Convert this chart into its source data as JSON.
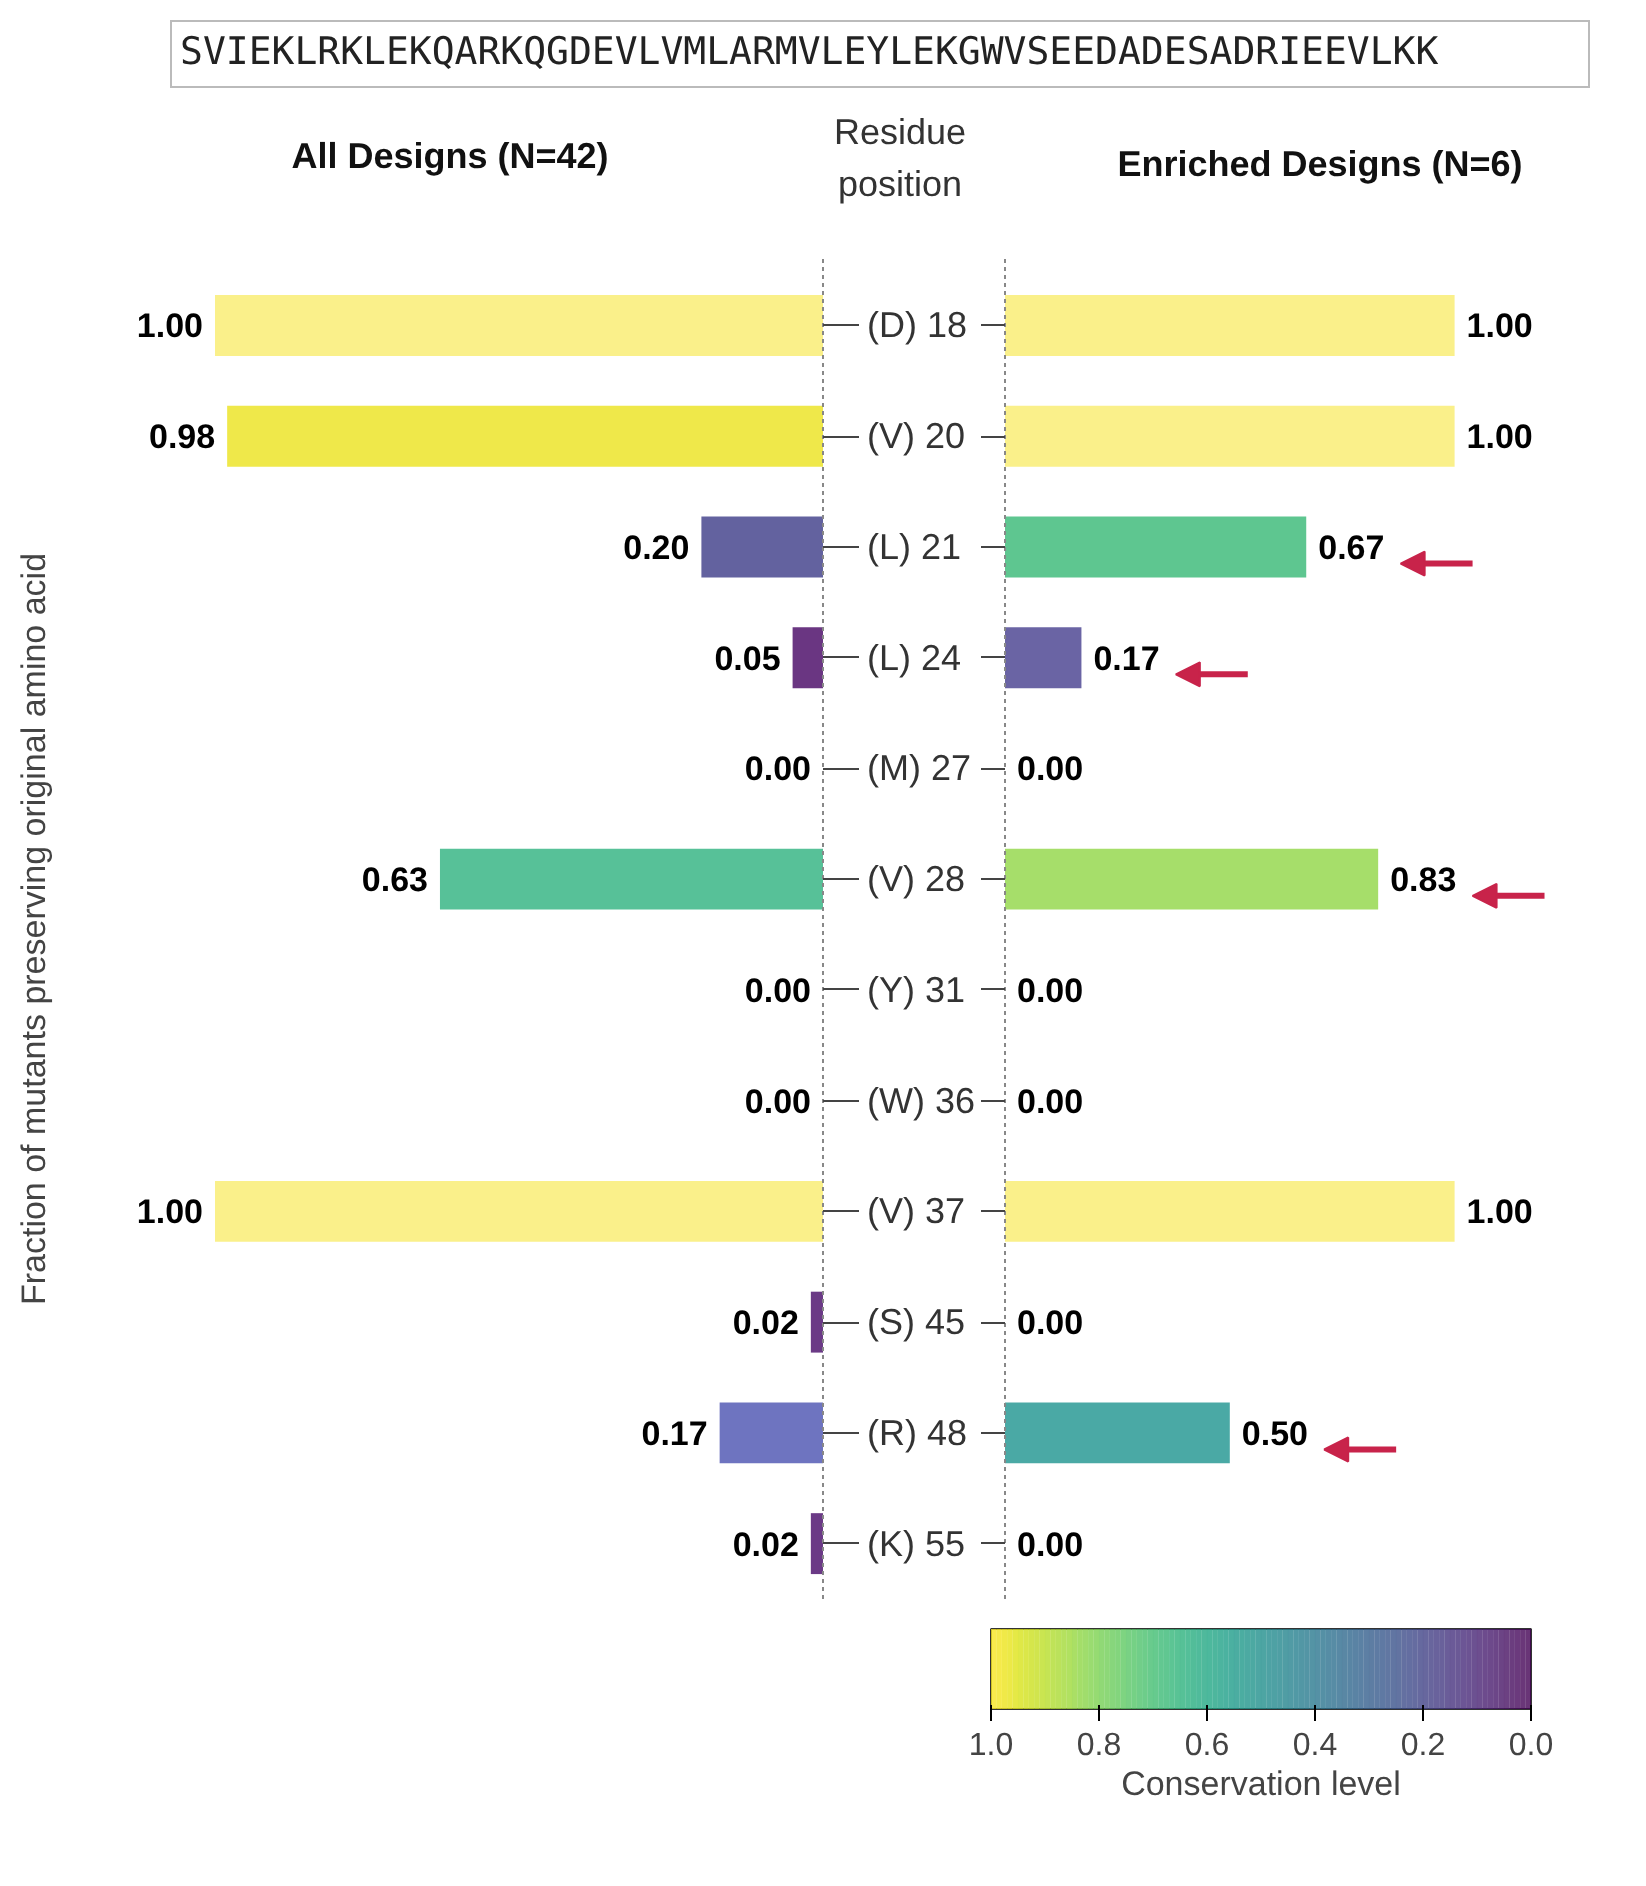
{
  "chart_data": [
    {
      "type": "bar",
      "orientation": "horizontal",
      "title": "All Designs (N=42)",
      "ylabel": "Fraction of mutants preserving original amino acid",
      "y2label": "Residue position",
      "annotations": [
        "SVIEKLRKLEKQARKQGDEVLVMLARMVLEYLEKGWVSEEDADESADRIEEVLKK"
      ],
      "grid": false,
      "tick_labels": "y",
      "categories": [
        "(D) 18",
        "(V) 20",
        "(L) 21",
        "(L) 24",
        "(M) 27",
        "(V) 28",
        "(Y) 31",
        "(W) 36",
        "(V) 37",
        "(S) 45",
        "(R) 48",
        "(K) 55"
      ],
      "values": [
        1.0,
        0.98,
        0.2,
        0.05,
        0.0,
        0.63,
        0.0,
        0.0,
        1.0,
        0.02,
        0.17,
        0.02
      ],
      "colors": [
        "#faf08a",
        "#efe84a",
        "#63629f",
        "#6a3682",
        "#000000",
        "#57c198",
        "#000000",
        "#000000",
        "#faf08a",
        "#6b3a86",
        "#6e74c0",
        "#6b3a86"
      ],
      "value_labels": [
        "1.00",
        "0.98",
        "0.20",
        "0.05",
        "0.00",
        "0.63",
        "0.00",
        "0.00",
        "1.00",
        "0.02",
        "0.17",
        "0.02"
      ]
    },
    {
      "type": "bar",
      "orientation": "horizontal",
      "title": "Enriched Designs (N=6)",
      "grid": false,
      "tick_labels": false,
      "clabel": "Conservation level",
      "clim": [
        1.0,
        0.0
      ],
      "cticks": [
        {
          "value": 1.0,
          "label": "1.0"
        },
        {
          "value": 0.8,
          "label": "0.8"
        },
        {
          "value": 0.6,
          "label": "0.6"
        },
        {
          "value": 0.4,
          "label": "0.4"
        },
        {
          "value": 0.2,
          "label": "0.2"
        },
        {
          "value": 0.0,
          "label": "0.0"
        }
      ],
      "values": [
        1.0,
        1.0,
        0.67,
        0.17,
        0.0,
        0.83,
        0.0,
        0.0,
        1.0,
        0.0,
        0.5,
        0.0
      ],
      "colors": [
        "#faf08a",
        "#faf08a",
        "#5ec690",
        "#6a64a4",
        "#000000",
        "#a6de6a",
        "#000000",
        "#000000",
        "#faf08a",
        "#000000",
        "#4aa9a5",
        "#000000"
      ],
      "value_labels": [
        "1.00",
        "1.00",
        "0.67",
        "0.17",
        "0.00",
        "0.83",
        "0.00",
        "0.00",
        "1.00",
        "0.00",
        "0.50",
        "0.00"
      ]
    }
  ]
}
